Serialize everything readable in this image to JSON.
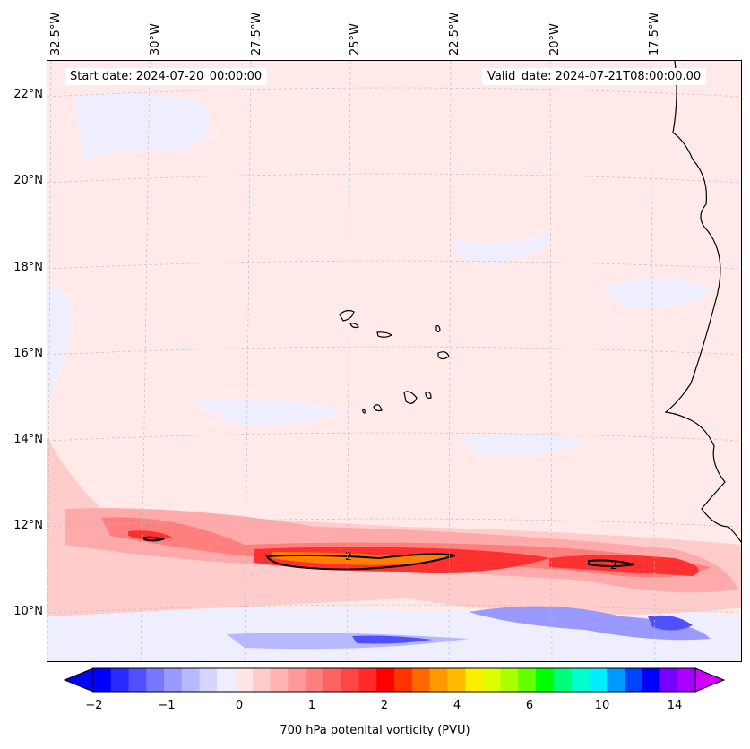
{
  "map": {
    "start_date": "Start date: 2024-07-20_00:00:00",
    "valid_date": "Valid_date: 2024-07-21T08:00:00.00",
    "lon_labels": [
      "32.5°W",
      "30°W",
      "27.5°W",
      "25°W",
      "22.5°W",
      "20°W",
      "17.5°W"
    ],
    "lat_labels": [
      "22°N",
      "20°N",
      "18°N",
      "16°N",
      "14°N",
      "12°N",
      "10°N"
    ],
    "contour_labels": [
      "2",
      "2"
    ],
    "colors": {
      "background": "#ffe9e9",
      "coast": "#000000"
    }
  },
  "colorbar": {
    "ticks": [
      "−2",
      "−1",
      "0",
      "1",
      "2",
      "4",
      "6",
      "10",
      "14"
    ],
    "label": "700 hPa potenital vorticity (PVU)",
    "colors": [
      "#0000ff",
      "#2a2aff",
      "#5050ff",
      "#7777ff",
      "#9999ff",
      "#b8b8ff",
      "#d5d5ff",
      "#eeeeff",
      "#ffe6e6",
      "#ffcccc",
      "#ffb3b3",
      "#ff9999",
      "#ff7f7f",
      "#ff6262",
      "#ff4545",
      "#ff2a2a",
      "#ff0000",
      "#ff3300",
      "#ff6600",
      "#ff9900",
      "#ffbb00",
      "#ffee00",
      "#ddff00",
      "#aaff00",
      "#66ff00",
      "#00ff00",
      "#00ff77",
      "#00ffcc",
      "#00eeff",
      "#0099ff",
      "#0044ff",
      "#0000ff",
      "#7700ff",
      "#aa00ff"
    ]
  }
}
